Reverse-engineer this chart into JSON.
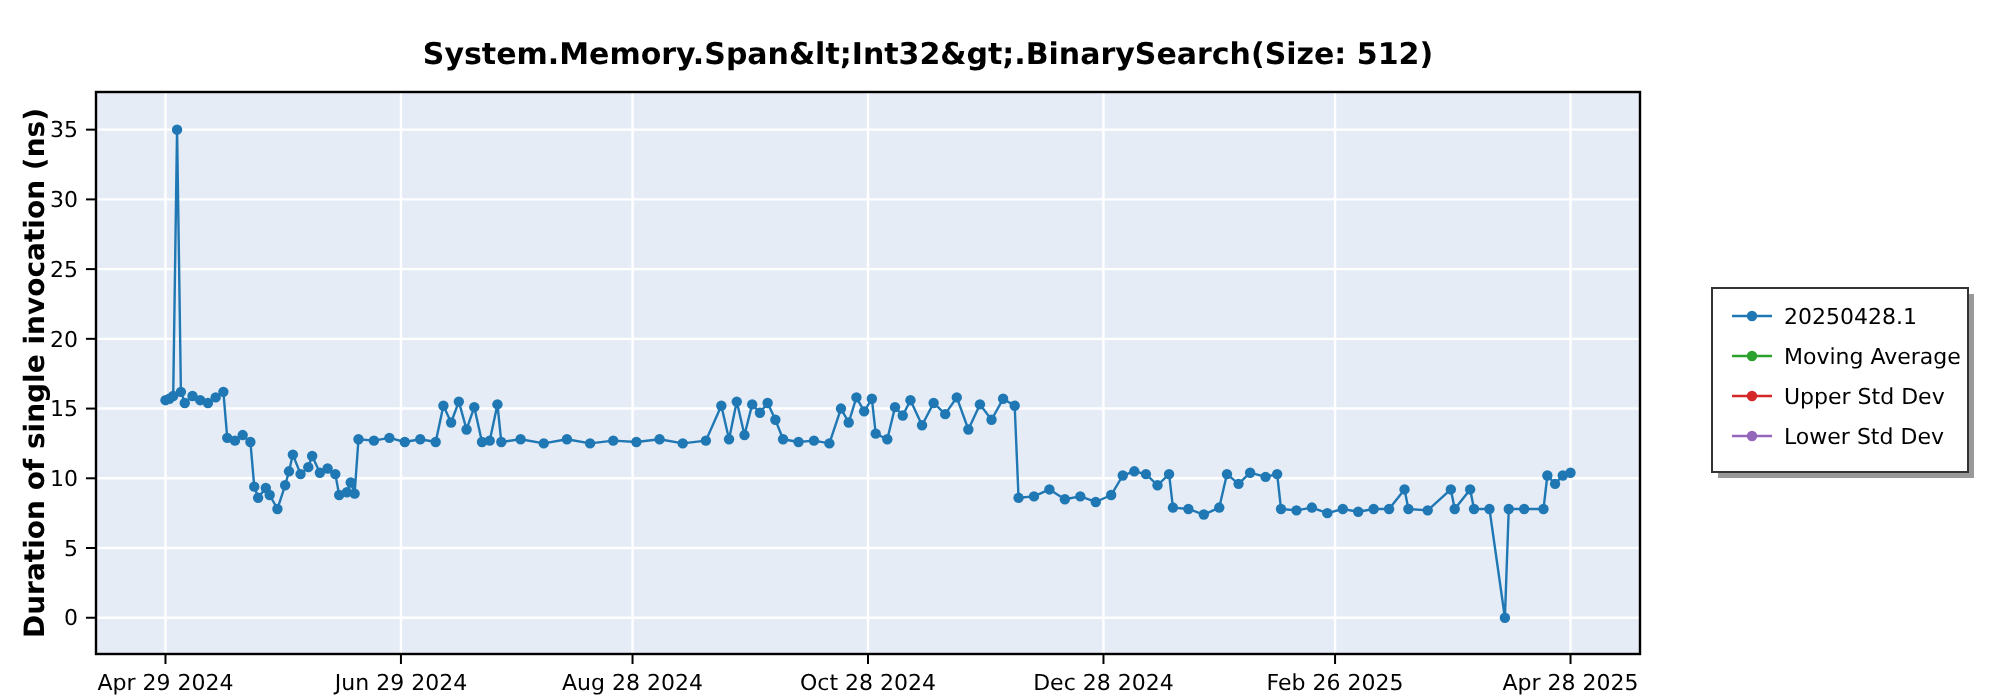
{
  "chart_data": {
    "type": "line",
    "title": "System.Memory.Span&lt;Int32&gt;.BinarySearch(Size: 512)",
    "ylabel": "Duration of single invocation (ns)",
    "xlim": [
      "2024-04-11",
      "2025-05-16"
    ],
    "xticks": [
      {
        "value": "2024-04-29",
        "label": "Apr 29 2024"
      },
      {
        "value": "2024-06-29",
        "label": "Jun 29 2024"
      },
      {
        "value": "2024-08-28",
        "label": "Aug 28 2024"
      },
      {
        "value": "2024-10-28",
        "label": "Oct 28 2024"
      },
      {
        "value": "2024-12-28",
        "label": "Dec 28 2024"
      },
      {
        "value": "2025-02-26",
        "label": "Feb 26 2025"
      },
      {
        "value": "2025-04-28",
        "label": "Apr 28 2025"
      }
    ],
    "ylim": [
      -2.6,
      37.7
    ],
    "yticks": [
      0,
      5,
      10,
      15,
      20,
      25,
      30,
      35
    ],
    "grid": true,
    "legend": "right",
    "marker": "circle",
    "line_style": "solid",
    "series": [
      {
        "name": "20250428.1",
        "color": "#1f77b4",
        "x": [
          "2024-04-29",
          "2024-04-30",
          "2024-05-01",
          "2024-05-02",
          "2024-05-03",
          "2024-05-04",
          "2024-05-06",
          "2024-05-08",
          "2024-05-10",
          "2024-05-12",
          "2024-05-14",
          "2024-05-15",
          "2024-05-17",
          "2024-05-19",
          "2024-05-21",
          "2024-05-22",
          "2024-05-23",
          "2024-05-25",
          "2024-05-26",
          "2024-05-28",
          "2024-05-30",
          "2024-05-31",
          "2024-06-01",
          "2024-06-03",
          "2024-06-05",
          "2024-06-06",
          "2024-06-08",
          "2024-06-10",
          "2024-06-12",
          "2024-06-13",
          "2024-06-15",
          "2024-06-16",
          "2024-06-17",
          "2024-06-18",
          "2024-06-22",
          "2024-06-26",
          "2024-06-30",
          "2024-07-04",
          "2024-07-08",
          "2024-07-10",
          "2024-07-12",
          "2024-07-14",
          "2024-07-16",
          "2024-07-18",
          "2024-07-20",
          "2024-07-22",
          "2024-07-24",
          "2024-07-25",
          "2024-07-30",
          "2024-08-05",
          "2024-08-11",
          "2024-08-17",
          "2024-08-23",
          "2024-08-29",
          "2024-09-04",
          "2024-09-10",
          "2024-09-16",
          "2024-09-20",
          "2024-09-22",
          "2024-09-24",
          "2024-09-26",
          "2024-09-28",
          "2024-09-30",
          "2024-10-02",
          "2024-10-04",
          "2024-10-06",
          "2024-10-10",
          "2024-10-14",
          "2024-10-18",
          "2024-10-21",
          "2024-10-23",
          "2024-10-25",
          "2024-10-27",
          "2024-10-29",
          "2024-10-30",
          "2024-11-02",
          "2024-11-04",
          "2024-11-06",
          "2024-11-08",
          "2024-11-11",
          "2024-11-14",
          "2024-11-17",
          "2024-11-20",
          "2024-11-23",
          "2024-11-26",
          "2024-11-29",
          "2024-12-02",
          "2024-12-05",
          "2024-12-06",
          "2024-12-10",
          "2024-12-14",
          "2024-12-18",
          "2024-12-22",
          "2024-12-26",
          "2024-12-30",
          "2025-01-02",
          "2025-01-05",
          "2025-01-08",
          "2025-01-11",
          "2025-01-14",
          "2025-01-15",
          "2025-01-19",
          "2025-01-23",
          "2025-01-27",
          "2025-01-29",
          "2025-02-01",
          "2025-02-04",
          "2025-02-08",
          "2025-02-11",
          "2025-02-12",
          "2025-02-16",
          "2025-02-20",
          "2025-02-24",
          "2025-02-28",
          "2025-03-04",
          "2025-03-08",
          "2025-03-12",
          "2025-03-16",
          "2025-03-17",
          "2025-03-22",
          "2025-03-28",
          "2025-03-29",
          "2025-04-02",
          "2025-04-03",
          "2025-04-07",
          "2025-04-11",
          "2025-04-12",
          "2025-04-16",
          "2025-04-21",
          "2025-04-22",
          "2025-04-24",
          "2025-04-26",
          "2025-04-28"
        ],
        "values": [
          15.6,
          15.7,
          15.9,
          35,
          16.2,
          15.4,
          15.9,
          15.6,
          15.4,
          15.8,
          16.2,
          12.9,
          12.7,
          13.1,
          12.6,
          9.4,
          8.6,
          9.3,
          8.8,
          7.8,
          9.5,
          10.5,
          11.7,
          10.3,
          10.8,
          11.6,
          10.4,
          10.7,
          10.3,
          8.8,
          9.0,
          9.7,
          8.9,
          12.8,
          12.7,
          12.9,
          12.6,
          12.8,
          12.6,
          15.2,
          14.0,
          15.5,
          13.5,
          15.1,
          12.6,
          12.7,
          15.3,
          12.6,
          12.8,
          12.5,
          12.8,
          12.5,
          12.7,
          12.6,
          12.8,
          12.5,
          12.7,
          15.2,
          12.8,
          15.5,
          13.1,
          15.3,
          14.7,
          15.4,
          14.2,
          12.8,
          12.6,
          12.7,
          12.5,
          15.0,
          14.0,
          15.8,
          14.8,
          15.7,
          13.2,
          12.8,
          15.1,
          14.5,
          15.6,
          13.8,
          15.4,
          14.6,
          15.8,
          13.5,
          15.3,
          14.2,
          15.7,
          15.2,
          8.6,
          8.7,
          9.2,
          8.5,
          8.7,
          8.3,
          8.8,
          10.2,
          10.5,
          10.3,
          9.5,
          10.3,
          7.9,
          7.8,
          7.4,
          7.9,
          10.3,
          9.6,
          10.4,
          10.1,
          10.3,
          7.8,
          7.7,
          7.9,
          7.5,
          7.8,
          7.6,
          7.8,
          7.8,
          9.2,
          7.8,
          7.7,
          9.2,
          7.8,
          9.2,
          7.8,
          7.8,
          0,
          7.8,
          7.8,
          7.8,
          10.2,
          9.6,
          10.2,
          10.4
        ]
      },
      {
        "name": "Moving Average",
        "color": "#2ca02c"
      },
      {
        "name": "Upper Std Dev",
        "color": "#d62728"
      },
      {
        "name": "Lower Std Dev",
        "color": "#9467bd"
      }
    ]
  }
}
